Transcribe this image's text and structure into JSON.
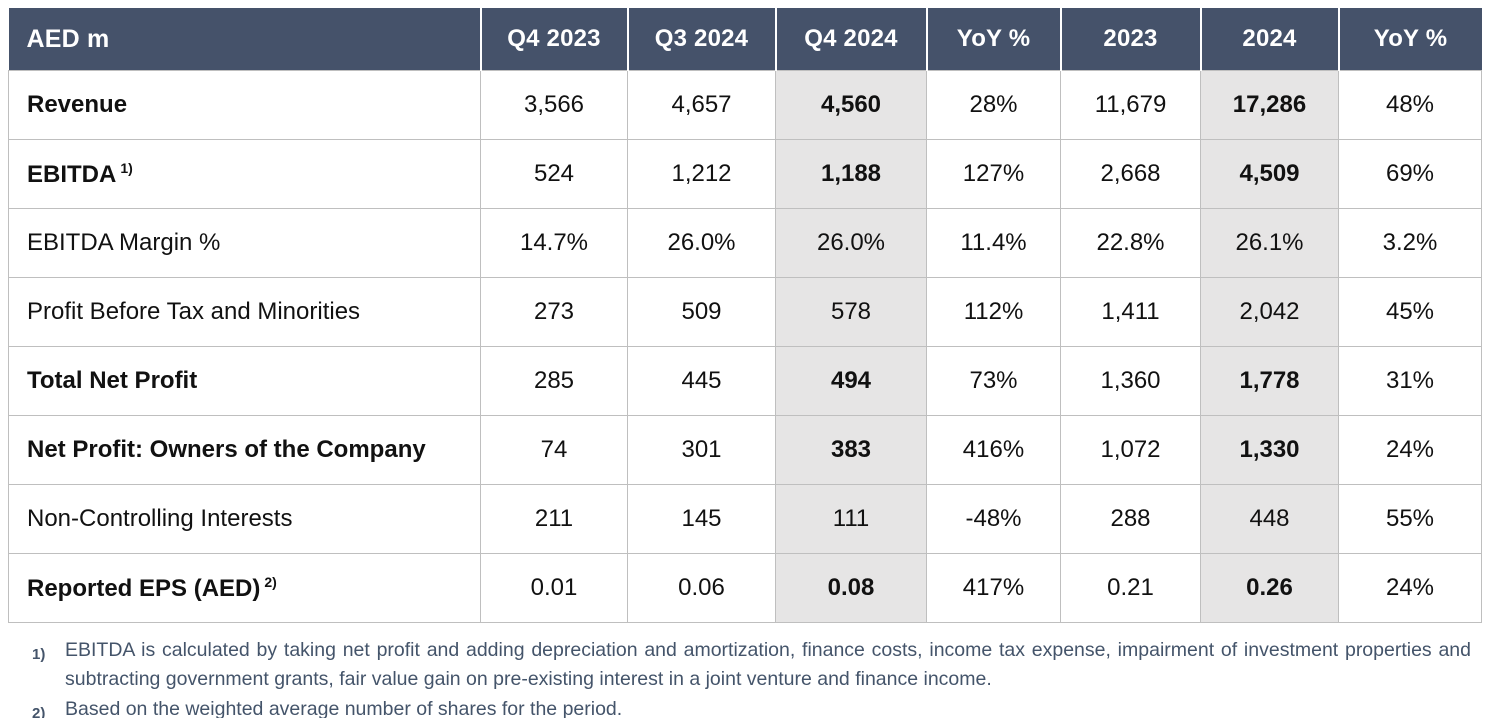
{
  "colors": {
    "header_bg": "#45526A",
    "header_text": "#FFFFFF",
    "highlight_bg": "#E6E5E5",
    "grid_line": "#BFBFBF",
    "body_text": "#111111",
    "footnote_text": "#44546A"
  },
  "table": {
    "corner_label": "AED m",
    "columns": [
      {
        "label": "Q4 2023",
        "highlighted": false
      },
      {
        "label": "Q3 2024",
        "highlighted": false
      },
      {
        "label": "Q4 2024",
        "highlighted": true
      },
      {
        "label": "YoY %",
        "highlighted": false
      },
      {
        "label": "2023",
        "highlighted": false
      },
      {
        "label": "2024",
        "highlighted": true
      },
      {
        "label": "YoY %",
        "highlighted": false
      }
    ],
    "rows": [
      {
        "label": "Revenue",
        "sup": "",
        "bold": true,
        "values": [
          "3,566",
          "4,657",
          "4,560",
          "28%",
          "11,679",
          "17,286",
          "48%"
        ]
      },
      {
        "label": "EBITDA",
        "sup": "1)",
        "bold": true,
        "values": [
          "524",
          "1,212",
          "1,188",
          "127%",
          "2,668",
          "4,509",
          "69%"
        ]
      },
      {
        "label": "EBITDA Margin %",
        "sup": "",
        "bold": false,
        "values": [
          "14.7%",
          "26.0%",
          "26.0%",
          "11.4%",
          "22.8%",
          "26.1%",
          "3.2%"
        ]
      },
      {
        "label": "Profit Before Tax and Minorities",
        "sup": "",
        "bold": false,
        "values": [
          "273",
          "509",
          "578",
          "112%",
          "1,411",
          "2,042",
          "45%"
        ]
      },
      {
        "label": "Total Net Profit",
        "sup": "",
        "bold": true,
        "values": [
          "285",
          "445",
          "494",
          "73%",
          "1,360",
          "1,778",
          "31%"
        ]
      },
      {
        "label": "Net Profit: Owners of the Company",
        "sup": "",
        "bold": true,
        "values": [
          "74",
          "301",
          "383",
          "416%",
          "1,072",
          "1,330",
          "24%"
        ]
      },
      {
        "label": "Non-Controlling Interests",
        "sup": "",
        "bold": false,
        "values": [
          "211",
          "145",
          "111",
          "-48%",
          "288",
          "448",
          "55%"
        ]
      },
      {
        "label": "Reported EPS (AED)",
        "sup": "2)",
        "bold": true,
        "values": [
          "0.01",
          "0.06",
          "0.08",
          "417%",
          "0.21",
          "0.26",
          "24%"
        ]
      }
    ]
  },
  "footnotes": [
    {
      "marker": "1)",
      "text": "EBITDA is calculated by taking net profit and adding depreciation and amortization, finance costs, income tax expense, impairment of investment properties and subtracting government grants, fair value gain on pre-existing interest in a joint venture and finance income."
    },
    {
      "marker": "2)",
      "text": "Based on the weighted average number of shares for the period."
    }
  ]
}
